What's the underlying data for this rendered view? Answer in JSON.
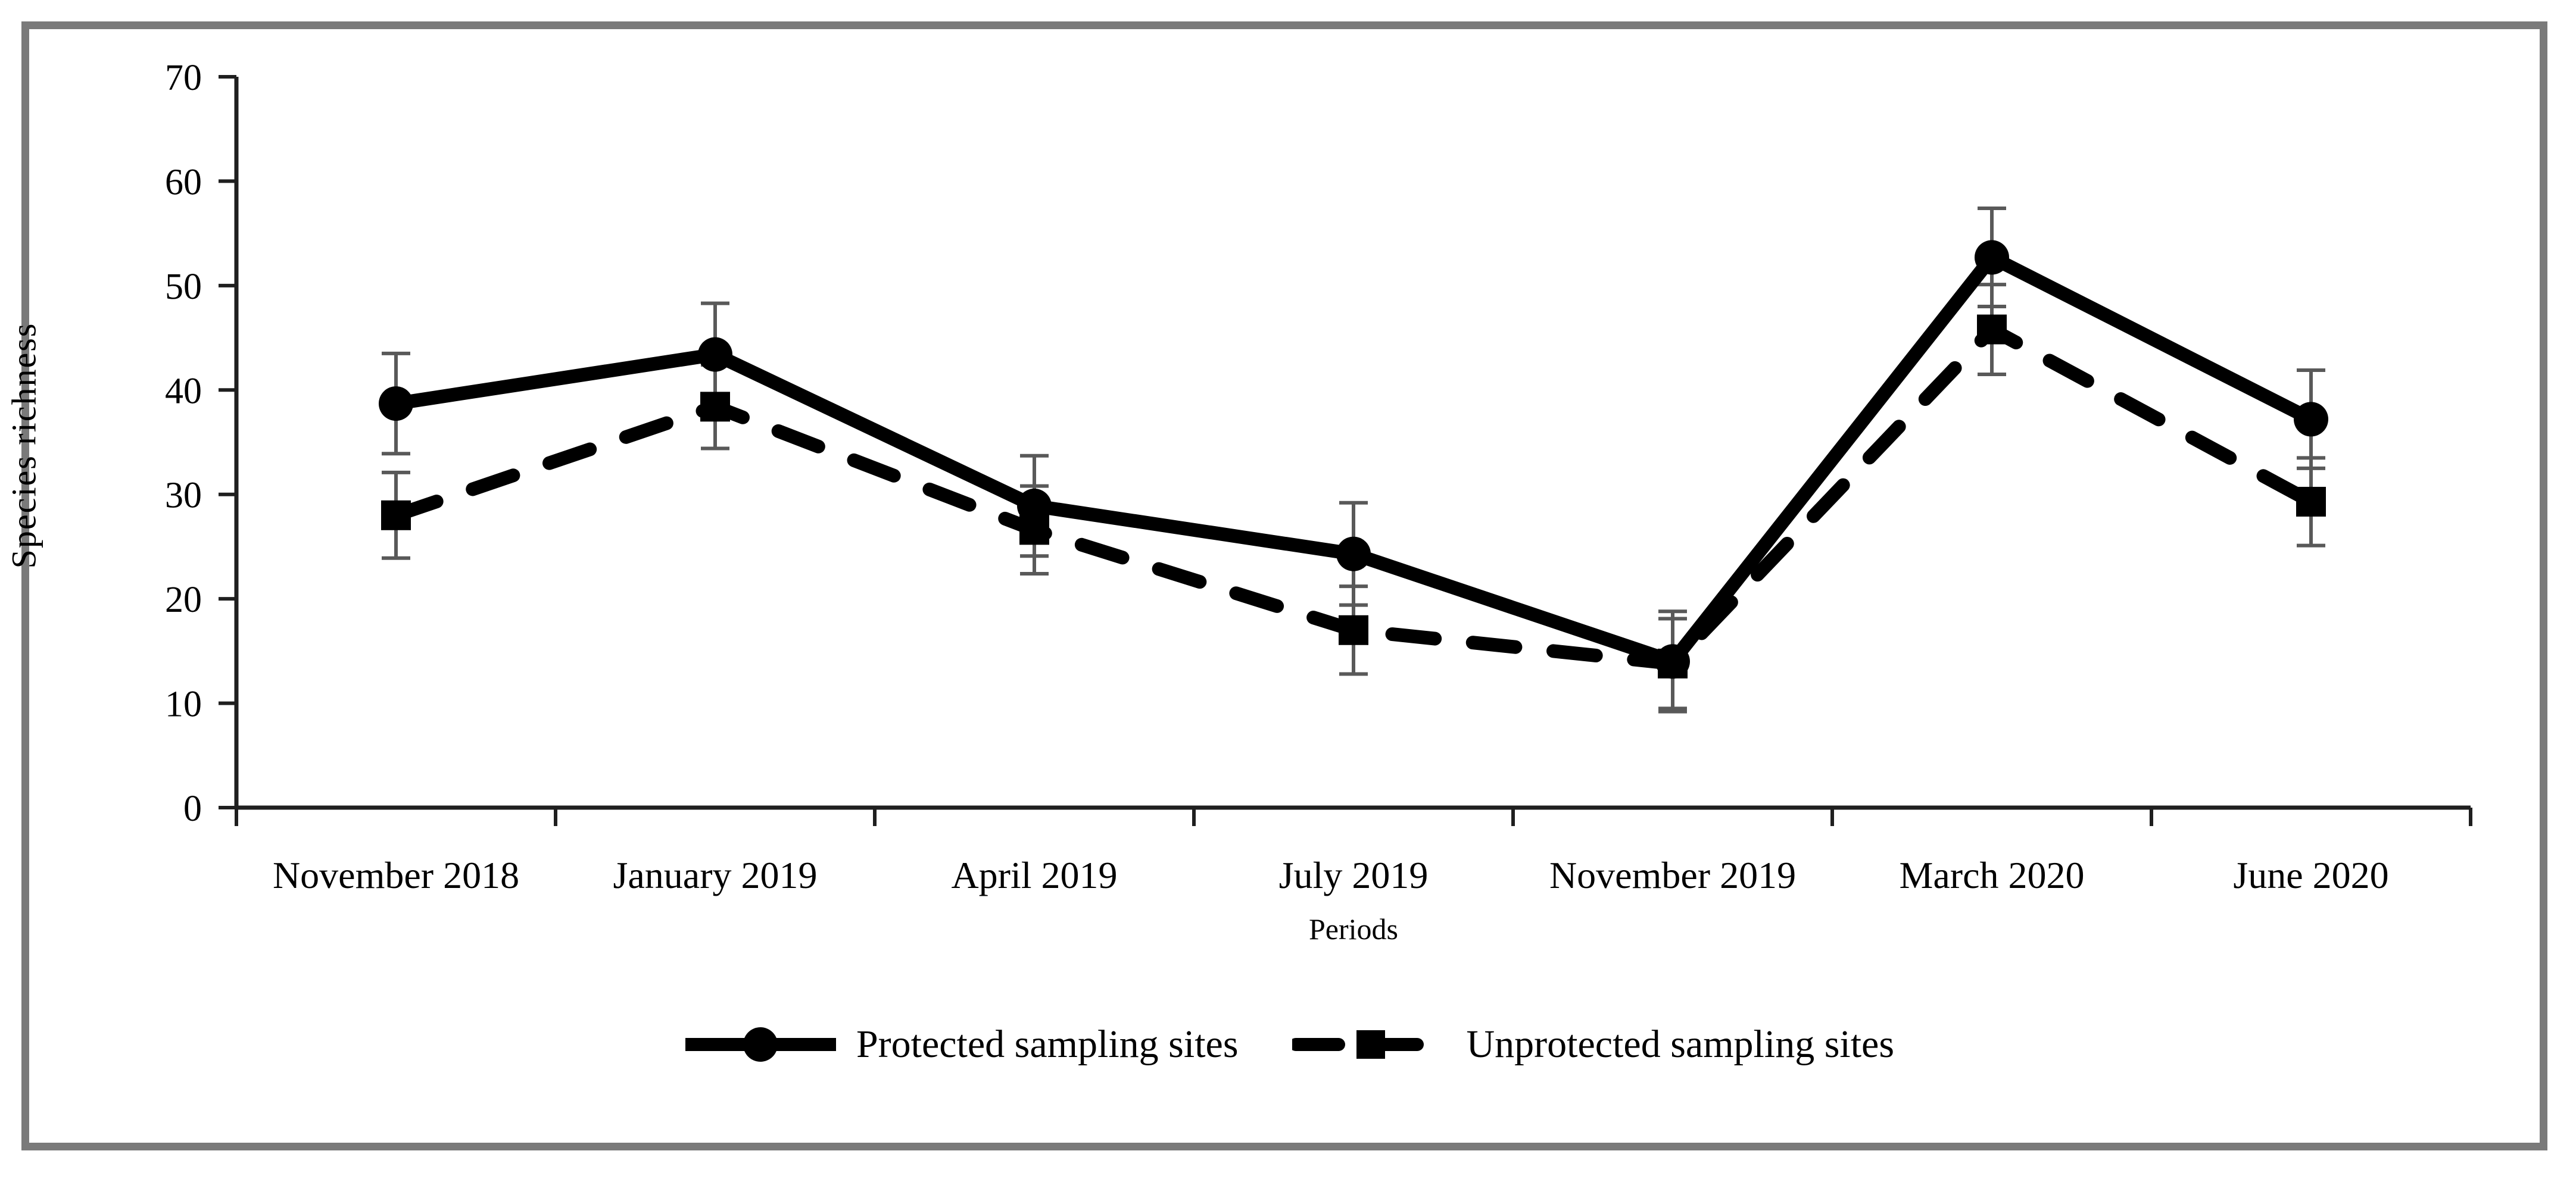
{
  "chart_data": {
    "type": "line",
    "title": "",
    "xlabel": "Periods",
    "ylabel": "Species richness",
    "ylim": [
      0,
      70
    ],
    "ytick_step": 10,
    "grid": false,
    "legend_position": "bottom",
    "categories": [
      "November 2018",
      "January 2019",
      "April 2019",
      "July 2019",
      "November 2019",
      "March 2020",
      "June 2020"
    ],
    "series": [
      {
        "name": "Protected sampling sites",
        "line_style": "solid",
        "marker": "circle",
        "color": "#000000",
        "values": [
          38.7,
          43.4,
          28.9,
          24.3,
          14.0,
          52.7,
          37.2
        ],
        "errors": [
          4.8,
          4.9,
          4.8,
          4.9,
          4.8,
          4.7,
          4.7
        ]
      },
      {
        "name": "Unprotected sampling sites",
        "line_style": "dashed",
        "marker": "square",
        "color": "#000000",
        "values": [
          28.0,
          38.4,
          26.6,
          17.0,
          13.8,
          45.8,
          29.3
        ],
        "errors": [
          4.1,
          4.0,
          4.2,
          4.2,
          4.3,
          4.3,
          4.2
        ]
      }
    ],
    "colors": {
      "series": "#000000",
      "error_bar": "#595959",
      "axis": "#1f1f1f",
      "frame_border": "#7a7a7a",
      "background": "#ffffff"
    }
  }
}
